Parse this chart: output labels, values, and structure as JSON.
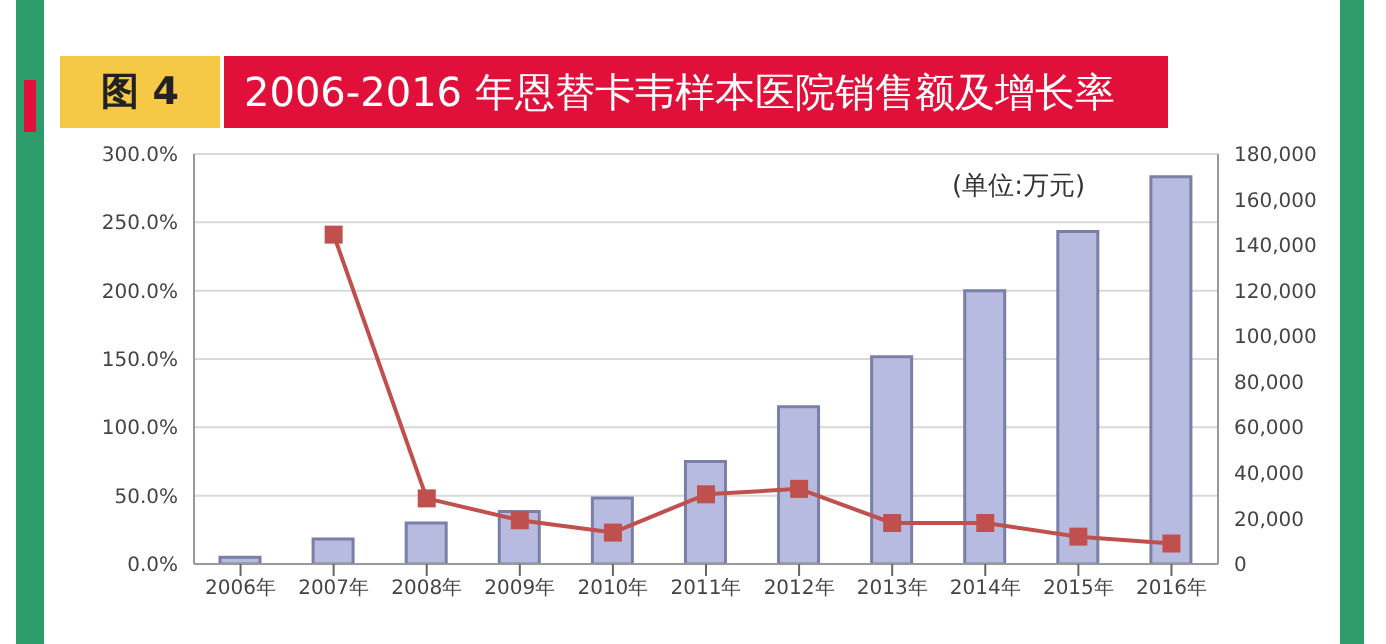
{
  "chart_data": {
    "type": "bar",
    "title": "2006-2016 年恩替卡韦样本医院销售额及增长率",
    "subtitle": "图 4",
    "annotations": [
      "(单位:万元)"
    ],
    "categories": [
      "2006年",
      "2007年",
      "2008年",
      "2009年",
      "2010年",
      "2011年",
      "2012年",
      "2013年",
      "2014年",
      "2015年",
      "2016年"
    ],
    "series": [
      {
        "axis": "y2",
        "color": "#b8bbe0",
        "values": [
          3000,
          11000,
          18000,
          23000,
          29000,
          45000,
          69000,
          91000,
          120000,
          146000,
          170000
        ]
      },
      {
        "type": "line",
        "axis": "y",
        "color": "#c0504d",
        "values": [
          null,
          241,
          48,
          32,
          23,
          51,
          55,
          30,
          30,
          20,
          15
        ]
      }
    ],
    "ylim": [
      0,
      300
    ],
    "yticks": [
      {
        "value": 0,
        "label": "0.0%"
      },
      {
        "value": 50,
        "label": "50.0%"
      },
      {
        "value": 100,
        "label": "100.0%"
      },
      {
        "value": 150,
        "label": "150.0%"
      },
      {
        "value": 200,
        "label": "200.0%"
      },
      {
        "value": 250,
        "label": "250.0%"
      },
      {
        "value": 300,
        "label": "300.0%"
      }
    ],
    "y2lim": [
      0,
      180000
    ],
    "y2ticks": [
      0,
      {
        "value": 20000,
        "label": "20,000"
      },
      {
        "value": 40000,
        "label": "40,000"
      },
      {
        "value": 60000,
        "label": "60,000"
      },
      {
        "value": 80000,
        "label": "80,000"
      },
      {
        "value": 100000,
        "label": "100,000"
      },
      {
        "value": 120000,
        "label": "120,000"
      },
      {
        "value": 140000,
        "label": "140,000"
      },
      {
        "value": 160000,
        "label": "160,000"
      },
      {
        "value": 180000,
        "label": "180,000"
      }
    ],
    "grid": "y",
    "legend": false,
    "marker": "square",
    "line_style": "solid"
  }
}
